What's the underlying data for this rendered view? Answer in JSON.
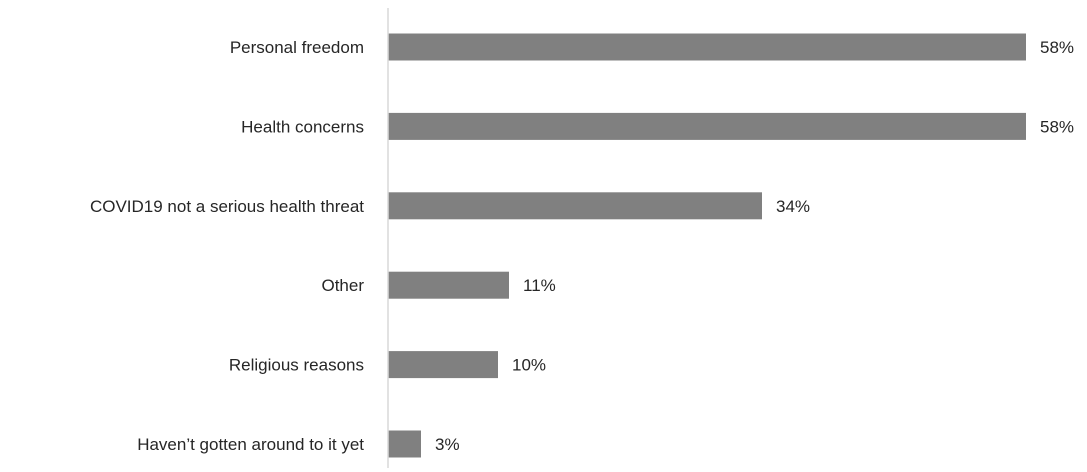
{
  "chart_data": {
    "type": "bar",
    "orientation": "horizontal",
    "categories": [
      "Personal freedom",
      "Health concerns",
      "COVID19 not a serious health threat",
      "Other",
      "Religious reasons",
      "Haven’t gotten around to it yet"
    ],
    "values": [
      58,
      58,
      34,
      11,
      10,
      3
    ],
    "value_labels": [
      "58%",
      "58%",
      "34%",
      "11%",
      "10%",
      "3%"
    ],
    "title": "",
    "xlabel": "",
    "ylabel": "",
    "xlim": [
      0,
      58
    ],
    "grid": false,
    "legend": "none",
    "bar_color": "#808080",
    "axis_color": "#d9d9d9"
  }
}
